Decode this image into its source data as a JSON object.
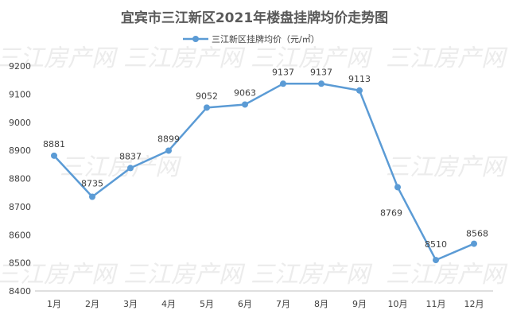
{
  "chart_data": {
    "type": "line",
    "title": "宜宾市三江新区2021年楼盘挂牌均价走势图",
    "categories": [
      "1月",
      "2月",
      "3月",
      "4月",
      "5月",
      "6月",
      "7月",
      "8月",
      "9月",
      "10月",
      "11月",
      "12月"
    ],
    "series": [
      {
        "name": "三江新区挂牌均价（元/㎡）",
        "values": [
          8881,
          8735,
          8837,
          8899,
          9052,
          9063,
          9137,
          9137,
          9113,
          8769,
          8510,
          8568
        ],
        "data_labels": [
          "8881",
          "8735",
          "8837",
          "8899",
          "9052",
          "9063",
          "9137",
          "9137",
          "9113",
          "8769",
          "8510",
          "8568"
        ]
      }
    ],
    "ylim": [
      8400,
      9200
    ],
    "yticks": [
      "8400",
      "8500",
      "8600",
      "8700",
      "8800",
      "8900",
      "9000",
      "9100",
      "9200"
    ],
    "grid": false,
    "legend_position": "top-center",
    "xlabel": "",
    "ylabel": "",
    "watermark": "三江房产网"
  },
  "colors": {
    "line": "#5b9bd5",
    "text": "#404040",
    "title": "#595959",
    "axis": "#bfbfbf",
    "watermark": "#ececec"
  }
}
